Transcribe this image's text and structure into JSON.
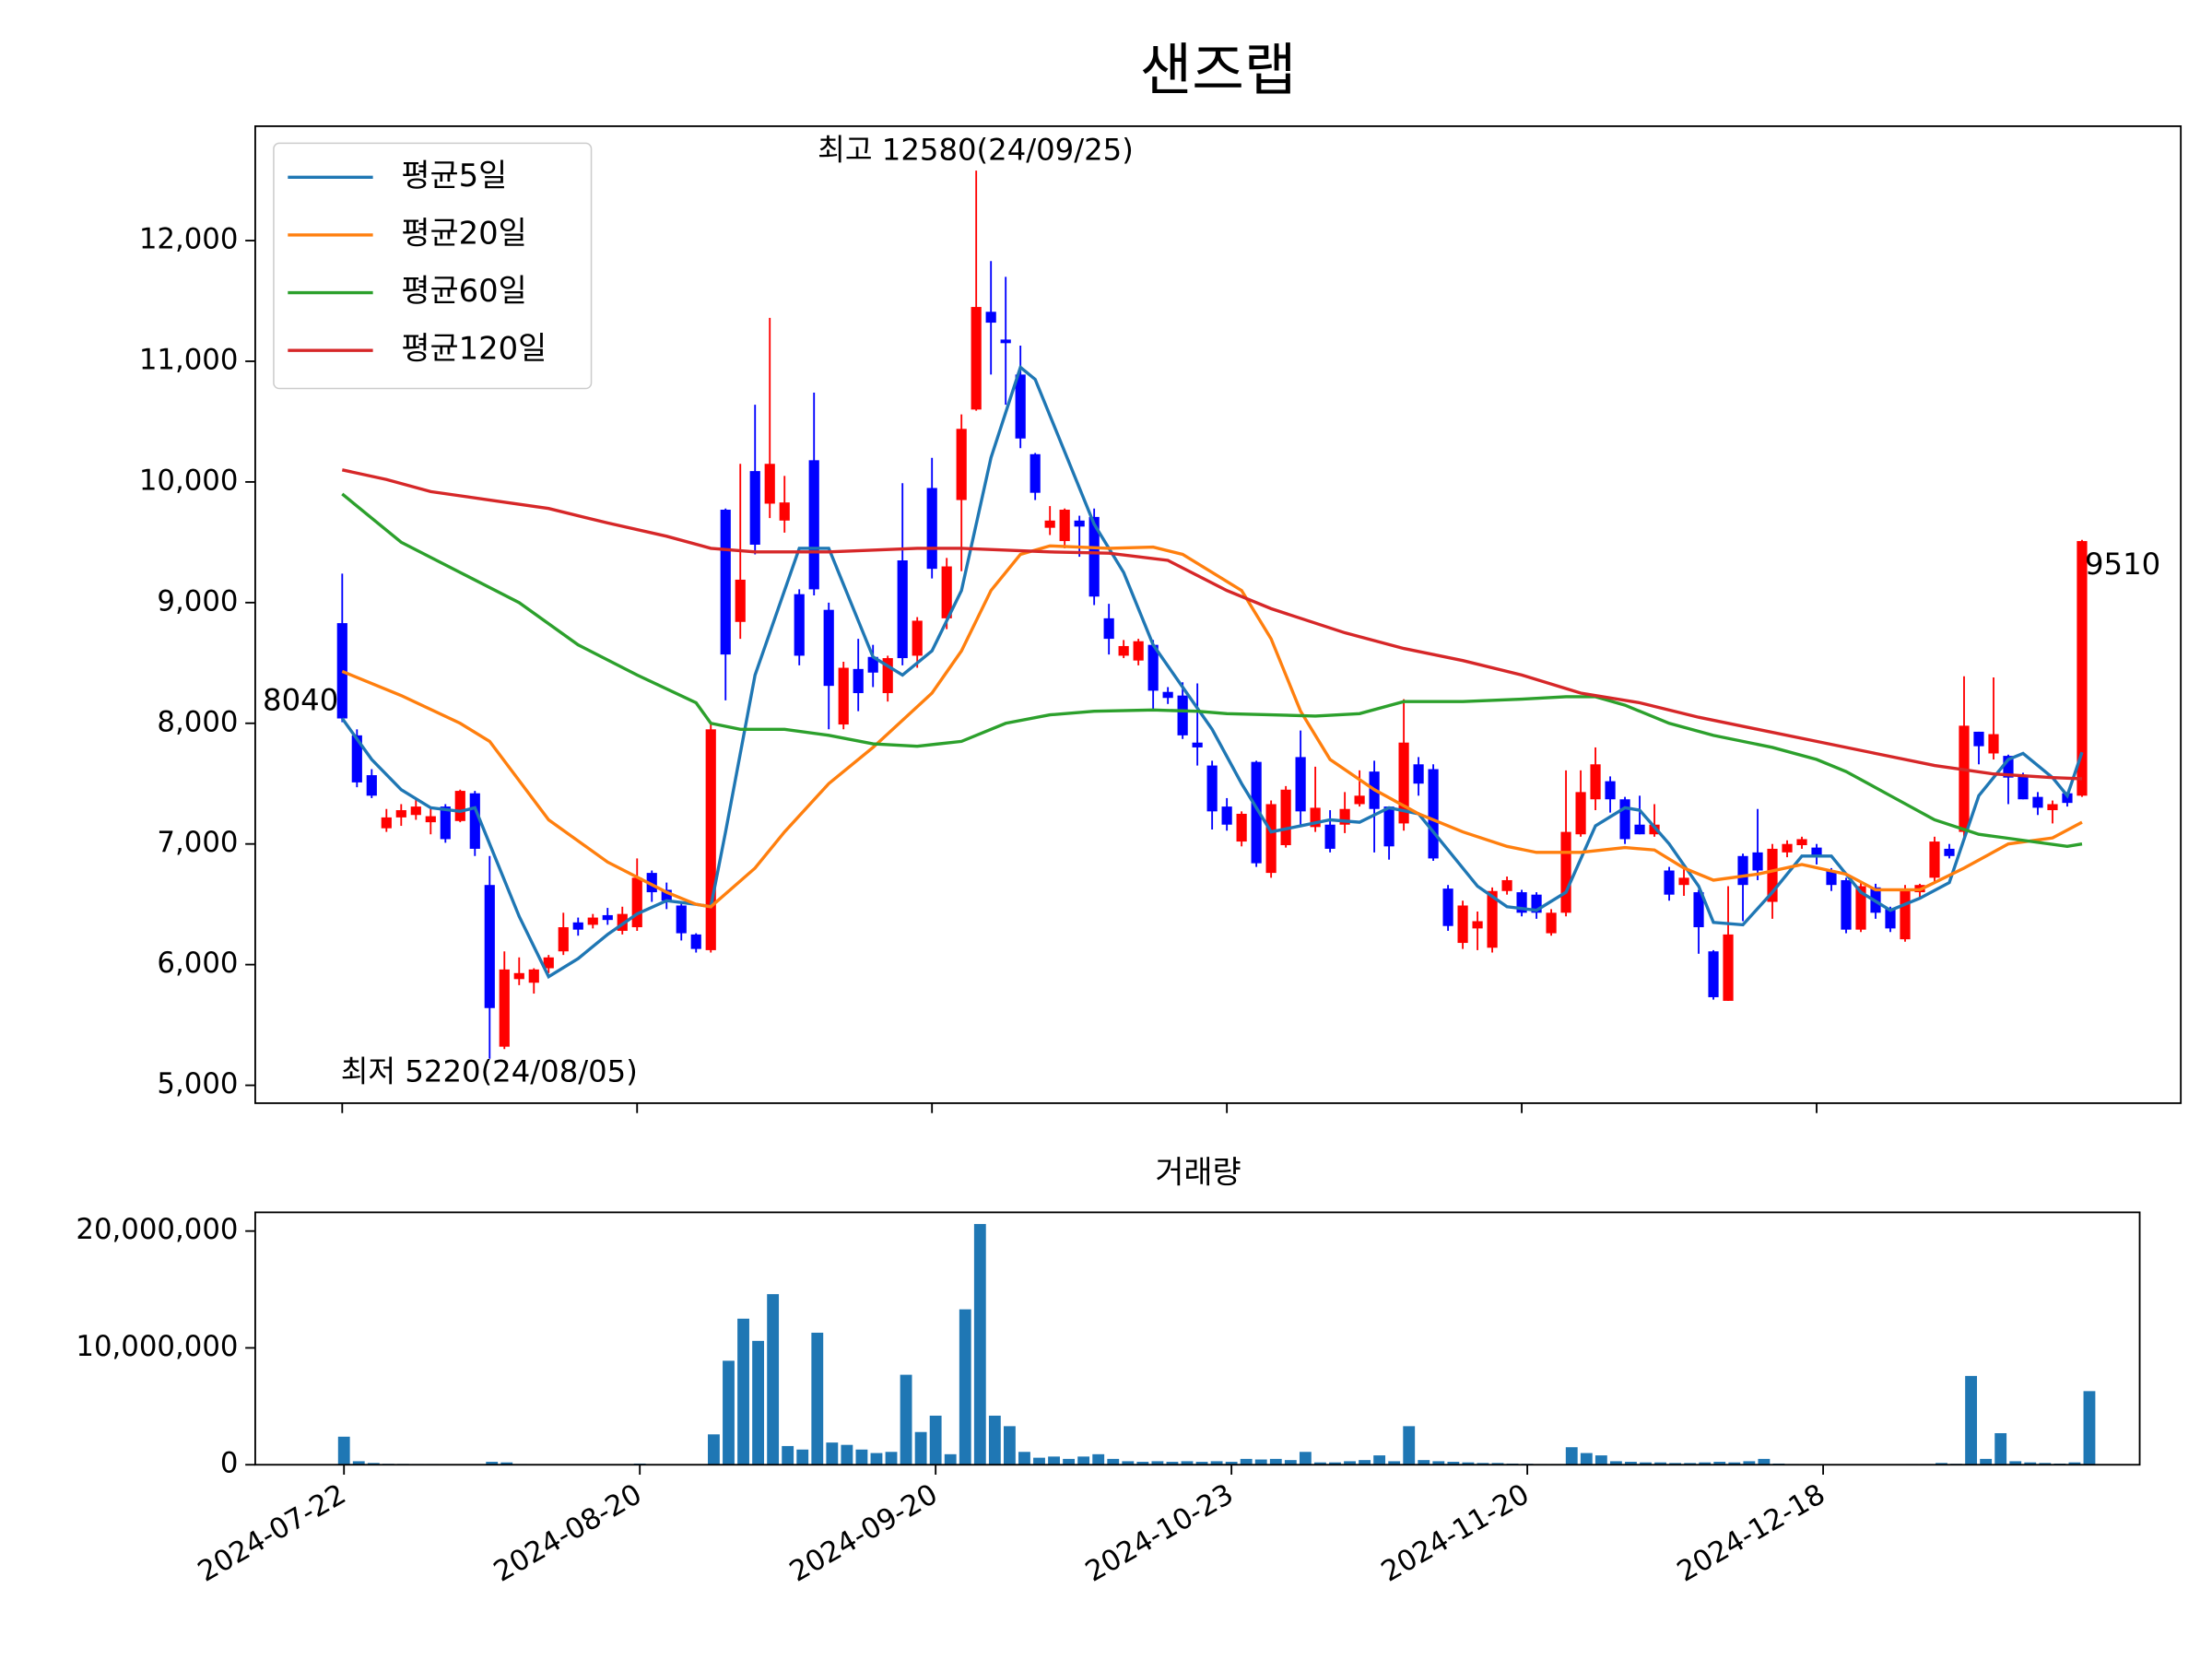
{
  "chart_data": [
    {
      "type": "candlestick",
      "title": "샌즈랩",
      "open": [
        8830,
        7900,
        7570,
        7130,
        7220,
        7240,
        7180,
        7310,
        7190,
        7420,
        6660,
        5320,
        5880,
        5850,
        5970,
        6110,
        6350,
        6330,
        6410,
        6280,
        6310,
        6760,
        6620,
        6490,
        6250,
        6120,
        9770,
        8840,
        10090,
        9820,
        9680,
        9070,
        10180,
        8940,
        7990,
        8450,
        8550,
        8250,
        9350,
        8560,
        9950,
        8870,
        9850,
        10600,
        11410,
        11180,
        10890,
        10230,
        9620,
        9510,
        9680,
        9710,
        8870,
        8560,
        8520,
        8650,
        8260,
        8230,
        7840,
        7650,
        7310,
        7020,
        7680,
        6760,
        6990,
        7720,
        7140,
        7160,
        7160,
        7330,
        7600,
        7310,
        7170,
        7660,
        7620,
        6630,
        6180,
        6300,
        6140,
        6610,
        6600,
        6580,
        6260,
        6430,
        7080,
        7370,
        7520,
        7370,
        7160,
        7080,
        6780,
        6660,
        6600,
        6110,
        5700,
        6900,
        6930,
        6520,
        6930,
        6990,
        6970,
        6780,
        6700,
        6290,
        6640,
        6460,
        6210,
        6600,
        6720,
        6960,
        7100,
        7930,
        7750,
        7730,
        7560,
        7390,
        7280,
        7420,
        7400
      ],
      "high": [
        9240,
        7950,
        7620,
        7290,
        7330,
        7380,
        7310,
        7330,
        7450,
        7440,
        6900,
        6110,
        6060,
        5970,
        6080,
        6430,
        6390,
        6420,
        6470,
        6480,
        6880,
        6780,
        6680,
        6520,
        6260,
        8000,
        9780,
        10150,
        10640,
        11360,
        10050,
        9110,
        10740,
        9000,
        8510,
        8700,
        8650,
        8560,
        9990,
        8880,
        10200,
        9370,
        10560,
        12580,
        11830,
        11700,
        11130,
        10240,
        9800,
        9780,
        9720,
        9780,
        8990,
        8690,
        8700,
        8690,
        8300,
        8340,
        8330,
        7690,
        7380,
        7270,
        7690,
        7360,
        7480,
        7940,
        7640,
        7280,
        7430,
        7610,
        7690,
        7310,
        8200,
        7720,
        7660,
        6660,
        6530,
        6440,
        6640,
        6730,
        6620,
        6600,
        6460,
        7610,
        7610,
        7800,
        7560,
        7390,
        7400,
        7330,
        6810,
        6800,
        6620,
        6120,
        6650,
        6920,
        7290,
        7000,
        7030,
        7060,
        7000,
        6800,
        6720,
        6690,
        6670,
        6480,
        6660,
        6670,
        7060,
        7000,
        8390,
        7930,
        8380,
        7740,
        7590,
        7430,
        7360,
        7430,
        9520
      ],
      "low": [
        8010,
        7470,
        7380,
        7100,
        7150,
        7200,
        7080,
        7010,
        7180,
        6900,
        5220,
        5300,
        5830,
        5760,
        5930,
        6080,
        6240,
        6300,
        6330,
        6250,
        6280,
        6520,
        6460,
        6200,
        6100,
        6100,
        8190,
        8700,
        9400,
        9700,
        9580,
        8480,
        9060,
        7950,
        7950,
        8100,
        8300,
        8180,
        8480,
        8460,
        9200,
        8780,
        9260,
        10590,
        10890,
        10640,
        10280,
        9850,
        9560,
        9450,
        9380,
        8980,
        8570,
        8540,
        8480,
        8110,
        8160,
        7870,
        7650,
        7120,
        7110,
        6980,
        6810,
        6720,
        6970,
        7140,
        7100,
        6930,
        7090,
        7310,
        6930,
        6870,
        7110,
        7400,
        6860,
        6280,
        6130,
        6120,
        6100,
        6580,
        6400,
        6380,
        6240,
        6400,
        7060,
        7280,
        7260,
        7000,
        7080,
        7060,
        6530,
        6570,
        6090,
        5710,
        5700,
        6360,
        6700,
        6380,
        6890,
        6960,
        6830,
        6610,
        6260,
        6270,
        6380,
        6270,
        6190,
        6560,
        6690,
        6880,
        7060,
        7660,
        7700,
        7330,
        7370,
        7240,
        7170,
        7310,
        7390
      ],
      "close": [
        8040,
        7510,
        7400,
        7220,
        7280,
        7310,
        7230,
        7040,
        7440,
        6960,
        5640,
        5960,
        5930,
        5960,
        6060,
        6310,
        6290,
        6390,
        6370,
        6420,
        6720,
        6600,
        6530,
        6260,
        6130,
        7950,
        8570,
        9190,
        9480,
        10150,
        9830,
        8560,
        9110,
        8310,
        8460,
        8250,
        8420,
        8540,
        8540,
        8850,
        9280,
        9300,
        10440,
        11450,
        11320,
        11150,
        10360,
        9910,
        9680,
        9770,
        9630,
        9050,
        8700,
        8640,
        8680,
        8270,
        8210,
        7900,
        7800,
        7270,
        7160,
        7250,
        6840,
        7330,
        7450,
        7270,
        7300,
        6960,
        7290,
        7400,
        7290,
        6980,
        7840,
        7500,
        6880,
        6320,
        6490,
        6360,
        6610,
        6700,
        6430,
        6430,
        6430,
        7100,
        7430,
        7660,
        7370,
        7040,
        7080,
        7160,
        6580,
        6720,
        6310,
        5730,
        6250,
        6660,
        6780,
        6960,
        7000,
        7040,
        6890,
        6660,
        6290,
        6650,
        6430,
        6300,
        6610,
        6660,
        7020,
        6900,
        7980,
        7810,
        7910,
        7550,
        7370,
        7300,
        7330,
        7340,
        9510
      ],
      "up_color": "#ff0000",
      "down_color": "#0000ff",
      "series": [
        {
          "name": "평균5일",
          "color": "#1f77b4",
          "x": [
            0,
            2,
            4,
            6,
            8,
            9,
            10,
            12,
            14,
            16,
            18,
            20,
            22,
            24,
            25,
            26,
            28,
            30,
            31,
            33,
            34,
            36,
            38,
            40,
            42,
            44,
            46,
            47,
            49,
            51,
            53,
            55,
            57,
            59,
            61,
            63,
            65,
            67,
            69,
            71,
            73,
            75,
            77,
            79,
            81,
            83,
            85,
            87,
            88,
            90,
            92,
            93,
            95,
            97,
            99,
            101,
            103,
            105,
            107,
            109,
            111,
            113,
            114,
            116,
            117,
            118
          ],
          "values": [
            8040,
            7700,
            7450,
            7300,
            7270,
            7300,
            7000,
            6400,
            5900,
            6050,
            6250,
            6420,
            6530,
            6500,
            6480,
            7100,
            8400,
            9100,
            9450,
            9450,
            9150,
            8550,
            8400,
            8600,
            9100,
            10200,
            10950,
            10850,
            10250,
            9650,
            9250,
            8650,
            8300,
            7950,
            7500,
            7100,
            7150,
            7200,
            7180,
            7300,
            7250,
            6950,
            6650,
            6480,
            6450,
            6600,
            7150,
            7300,
            7280,
            7000,
            6650,
            6350,
            6330,
            6600,
            6900,
            6900,
            6600,
            6450,
            6550,
            6680,
            7400,
            7700,
            7750,
            7550,
            7400,
            7760
          ]
        },
        {
          "name": "평균20일",
          "color": "#ff7f0e",
          "x": [
            0,
            4,
            8,
            10,
            14,
            18,
            22,
            24,
            25,
            28,
            30,
            33,
            36,
            40,
            42,
            44,
            46,
            48,
            52,
            55,
            57,
            59,
            61,
            63,
            65,
            67,
            70,
            73,
            76,
            79,
            81,
            84,
            87,
            89,
            91,
            93,
            96,
            99,
            102,
            104,
            107,
            110,
            113,
            116,
            118
          ],
          "values": [
            8430,
            8230,
            8000,
            7850,
            7200,
            6850,
            6600,
            6500,
            6480,
            6800,
            7100,
            7500,
            7800,
            8250,
            8600,
            9100,
            9400,
            9470,
            9450,
            9460,
            9400,
            9250,
            9100,
            8700,
            8100,
            7700,
            7450,
            7250,
            7100,
            6980,
            6930,
            6930,
            6970,
            6950,
            6800,
            6700,
            6750,
            6830,
            6750,
            6620,
            6620,
            6800,
            7000,
            7050,
            7180
          ]
        },
        {
          "name": "평균60일",
          "color": "#2ca02c",
          "x": [
            0,
            4,
            8,
            12,
            16,
            20,
            24,
            25,
            27,
            30,
            33,
            36,
            39,
            42,
            45,
            48,
            51,
            55,
            58,
            60,
            63,
            66,
            69,
            72,
            76,
            80,
            83,
            85,
            87,
            90,
            93,
            97,
            100,
            102,
            105,
            108,
            111,
            114,
            117,
            118
          ],
          "values": [
            9900,
            9500,
            9250,
            9000,
            8650,
            8400,
            8170,
            8000,
            7950,
            7950,
            7900,
            7830,
            7810,
            7850,
            8000,
            8070,
            8100,
            8110,
            8100,
            8080,
            8070,
            8060,
            8080,
            8180,
            8180,
            8200,
            8220,
            8220,
            8150,
            8000,
            7900,
            7800,
            7700,
            7600,
            7400,
            7200,
            7080,
            7030,
            6980,
            7000
          ]
        },
        {
          "name": "평균120일",
          "color": "#d62728",
          "x": [
            0,
            3,
            6,
            10,
            14,
            18,
            22,
            25,
            28,
            33,
            39,
            42,
            48,
            52,
            56,
            60,
            63,
            68,
            72,
            76,
            80,
            84,
            88,
            92,
            96,
            100,
            104,
            108,
            112,
            116,
            118
          ],
          "values": [
            10100,
            10020,
            9920,
            9850,
            9780,
            9660,
            9550,
            9450,
            9420,
            9420,
            9450,
            9450,
            9420,
            9410,
            9350,
            9100,
            8950,
            8750,
            8620,
            8520,
            8400,
            8250,
            8170,
            8050,
            7950,
            7850,
            7750,
            7650,
            7580,
            7550,
            7540
          ]
        }
      ],
      "annotations": [
        {
          "text": "최고 12580(24/09/25)",
          "color": "#ff0000"
        },
        {
          "text": "최저 5220(24/08/05)",
          "color": "#0000ff"
        },
        {
          "text": "8040",
          "color": "#000000"
        },
        {
          "text": "9510",
          "color": "#000000"
        }
      ],
      "legend": "upper left",
      "xlim": [
        -5.9,
        124.7
      ],
      "ylim": [
        4852,
        12948
      ],
      "yticks": [
        {
          "value": 5000,
          "label": "5,000"
        },
        {
          "value": 6000,
          "label": "6,000"
        },
        {
          "value": 7000,
          "label": "7,000"
        },
        {
          "value": 8000,
          "label": "8,000"
        },
        {
          "value": 9000,
          "label": "9,000"
        },
        {
          "value": 10000,
          "label": "10,000"
        },
        {
          "value": 11000,
          "label": "11,000"
        },
        {
          "value": 12000,
          "label": "12,000"
        }
      ]
    },
    {
      "type": "bar",
      "title": "거래량",
      "color": "#1f77b4",
      "values": [
        2400000,
        300000,
        150000,
        80000,
        70000,
        60000,
        60000,
        50000,
        50000,
        50000,
        250000,
        200000,
        60000,
        50000,
        40000,
        50000,
        40000,
        40000,
        40000,
        50000,
        100000,
        50000,
        40000,
        40000,
        40000,
        2600000,
        8900000,
        12500000,
        10600000,
        14600000,
        1600000,
        1300000,
        11300000,
        1900000,
        1700000,
        1300000,
        1000000,
        1100000,
        7700000,
        2800000,
        4200000,
        900000,
        13300000,
        20600000,
        4200000,
        3300000,
        1100000,
        600000,
        700000,
        500000,
        700000,
        900000,
        500000,
        300000,
        250000,
        300000,
        250000,
        300000,
        250000,
        300000,
        250000,
        500000,
        450000,
        500000,
        400000,
        1100000,
        200000,
        200000,
        300000,
        400000,
        800000,
        300000,
        3300000,
        400000,
        300000,
        250000,
        200000,
        150000,
        150000,
        100000,
        80000,
        60000,
        60000,
        1500000,
        1000000,
        800000,
        300000,
        250000,
        200000,
        200000,
        150000,
        150000,
        200000,
        250000,
        200000,
        300000,
        500000,
        100000,
        60000,
        50000,
        40000,
        40000,
        50000,
        40000,
        40000,
        40000,
        60000,
        60000,
        150000,
        80000,
        7600000,
        500000,
        2700000,
        300000,
        200000,
        150000,
        100000,
        200000,
        6300000
      ],
      "xlim": [
        -6.0,
        121.4
      ],
      "ylim": [
        0,
        21600000
      ],
      "yticks": [
        0,
        {
          "value": 10000000,
          "label": "10,000,000"
        },
        {
          "value": 20000000,
          "label": "20,000,000"
        }
      ],
      "xticks": [
        {
          "value": 0,
          "label": "2024-07-22"
        },
        {
          "value": 20,
          "label": "2024-08-20"
        },
        {
          "value": 40,
          "label": "2024-09-20"
        },
        {
          "value": 60,
          "label": "2024-10-23"
        },
        {
          "value": 80,
          "label": "2024-11-20"
        },
        {
          "value": 100,
          "label": "2024-12-18"
        }
      ]
    }
  ]
}
